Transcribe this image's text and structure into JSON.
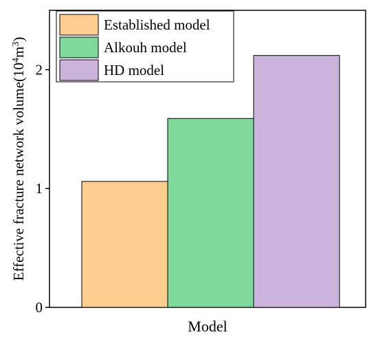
{
  "chart_data": {
    "type": "bar",
    "categories": [
      "Established model",
      "Alkouh model",
      "HD model"
    ],
    "values": [
      1.06,
      1.59,
      2.12
    ],
    "colors": [
      "#FDCE90",
      "#7FD99A",
      "#CBB4DB"
    ],
    "xlabel": "Model",
    "ylabel_main": "Effective fracture network volume(10",
    "ylabel_sup1": "4",
    "ylabel_mid": "m",
    "ylabel_sup2": "3",
    "ylabel_end": ")",
    "ylim": [
      0,
      2.5
    ],
    "yticks": [
      0,
      1,
      2
    ],
    "ytick_labels": [
      "0",
      "1",
      "2"
    ],
    "legend": {
      "placement": "top-left",
      "entries": [
        "Established model",
        "Alkouh model",
        "HD model"
      ]
    },
    "grid": false
  }
}
